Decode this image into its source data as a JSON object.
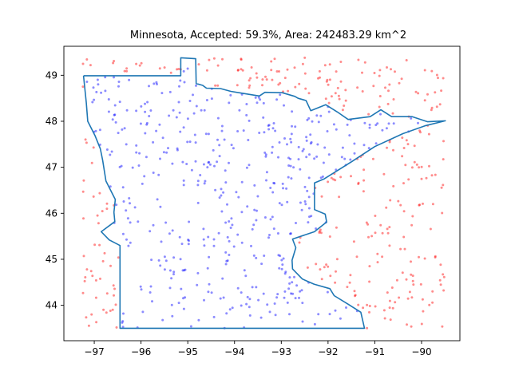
{
  "chart_data": {
    "type": "scatter",
    "title": "Minnesota, Accepted: 59.3%, Area: 242483.29 km^2",
    "xlabel": "",
    "ylabel": "",
    "xlim": [
      -97.65,
      -89.18
    ],
    "ylim": [
      43.23,
      49.63
    ],
    "xticks": [
      -97,
      -96,
      -95,
      -94,
      -93,
      -92,
      -91,
      -90
    ],
    "yticks": [
      44,
      45,
      46,
      47,
      48,
      49
    ],
    "xtick_labels": [
      "−97",
      "−96",
      "−95",
      "−94",
      "−93",
      "−92",
      "−91",
      "−90"
    ],
    "ytick_labels": [
      "44",
      "45",
      "46",
      "47",
      "48",
      "49"
    ],
    "grid": false,
    "accepted_fraction": 0.593,
    "sample_count": 800,
    "sampling_box": {
      "lon": [
        -97.25,
        -89.5
      ],
      "lat": [
        43.5,
        49.38
      ]
    },
    "series": [
      {
        "color": "#0000ff",
        "role": "accepted points (inside state)",
        "marker_alpha": 0.45
      },
      {
        "color": "#ff0000",
        "role": "rejected points (outside state)",
        "marker_alpha": 0.45
      }
    ],
    "outline": {
      "color": "#1f77b4",
      "points": [
        [
          -97.23,
          48.99
        ],
        [
          -95.15,
          48.99
        ],
        [
          -95.15,
          49.38
        ],
        [
          -94.83,
          49.36
        ],
        [
          -94.82,
          48.82
        ],
        [
          -94.68,
          48.78
        ],
        [
          -94.6,
          48.72
        ],
        [
          -94.3,
          48.71
        ],
        [
          -94.08,
          48.65
        ],
        [
          -93.84,
          48.61
        ],
        [
          -93.47,
          48.55
        ],
        [
          -93.35,
          48.63
        ],
        [
          -92.98,
          48.62
        ],
        [
          -92.71,
          48.54
        ],
        [
          -92.64,
          48.5
        ],
        [
          -92.47,
          48.45
        ],
        [
          -92.37,
          48.23
        ],
        [
          -92.05,
          48.36
        ],
        [
          -91.8,
          48.2
        ],
        [
          -91.57,
          48.04
        ],
        [
          -91.1,
          48.1
        ],
        [
          -90.87,
          48.25
        ],
        [
          -90.64,
          48.1
        ],
        [
          -90.2,
          48.1
        ],
        [
          -89.87,
          47.99
        ],
        [
          -89.49,
          48.01
        ],
        [
          -89.93,
          47.9
        ],
        [
          -90.4,
          47.73
        ],
        [
          -91.0,
          47.45
        ],
        [
          -91.48,
          47.13
        ],
        [
          -92.08,
          46.75
        ],
        [
          -92.29,
          46.66
        ],
        [
          -92.29,
          46.08
        ],
        [
          -92.06,
          45.98
        ],
        [
          -92.03,
          45.81
        ],
        [
          -92.29,
          45.6
        ],
        [
          -92.76,
          45.44
        ],
        [
          -92.69,
          45.25
        ],
        [
          -92.77,
          44.98
        ],
        [
          -92.76,
          44.79
        ],
        [
          -92.55,
          44.57
        ],
        [
          -92.3,
          44.46
        ],
        [
          -91.96,
          44.36
        ],
        [
          -91.87,
          44.21
        ],
        [
          -91.58,
          44.03
        ],
        [
          -91.3,
          43.85
        ],
        [
          -91.22,
          43.5
        ],
        [
          -96.45,
          43.5
        ],
        [
          -96.45,
          45.3
        ],
        [
          -96.68,
          45.42
        ],
        [
          -96.85,
          45.6
        ],
        [
          -96.56,
          45.82
        ],
        [
          -96.58,
          46.02
        ],
        [
          -96.55,
          46.3
        ],
        [
          -96.75,
          46.7
        ],
        [
          -96.82,
          47.15
        ],
        [
          -96.87,
          47.4
        ],
        [
          -96.98,
          47.68
        ],
        [
          -97.14,
          48.0
        ],
        [
          -97.17,
          48.4
        ],
        [
          -97.23,
          48.99
        ]
      ]
    }
  }
}
